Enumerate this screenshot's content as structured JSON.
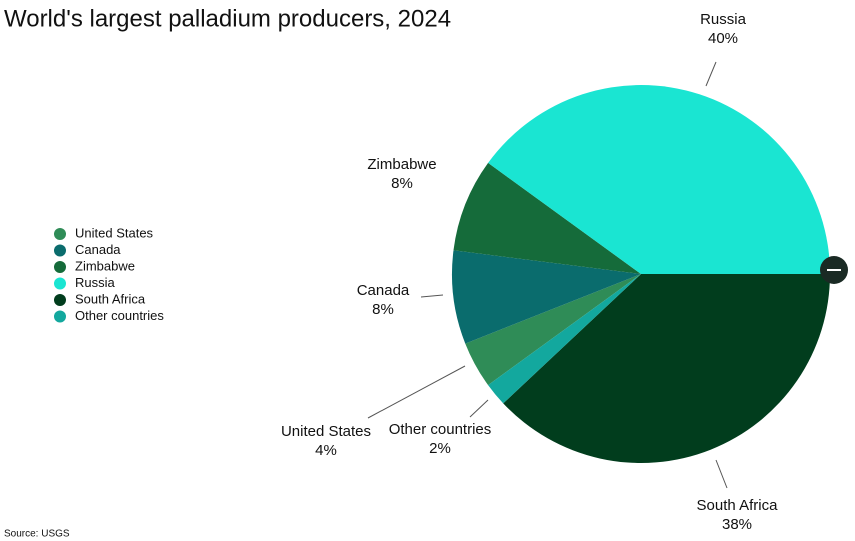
{
  "chart_data": {
    "type": "pie",
    "title": "World's largest palladium producers, 2024",
    "source": "Source: USGS",
    "categories": [
      "United States",
      "Canada",
      "Zimbabwe",
      "Russia",
      "South Africa",
      "Other countries"
    ],
    "values": [
      4,
      8,
      8,
      40,
      38,
      2
    ],
    "value_labels": [
      "4%",
      "8%",
      "8%",
      "40%",
      "38%",
      "2%"
    ],
    "colors": [
      "#2f8c57",
      "#0a6c6d",
      "#156b3a",
      "#1ae5d2",
      "#013d1d",
      "#13a89e"
    ],
    "legend": "left"
  }
}
